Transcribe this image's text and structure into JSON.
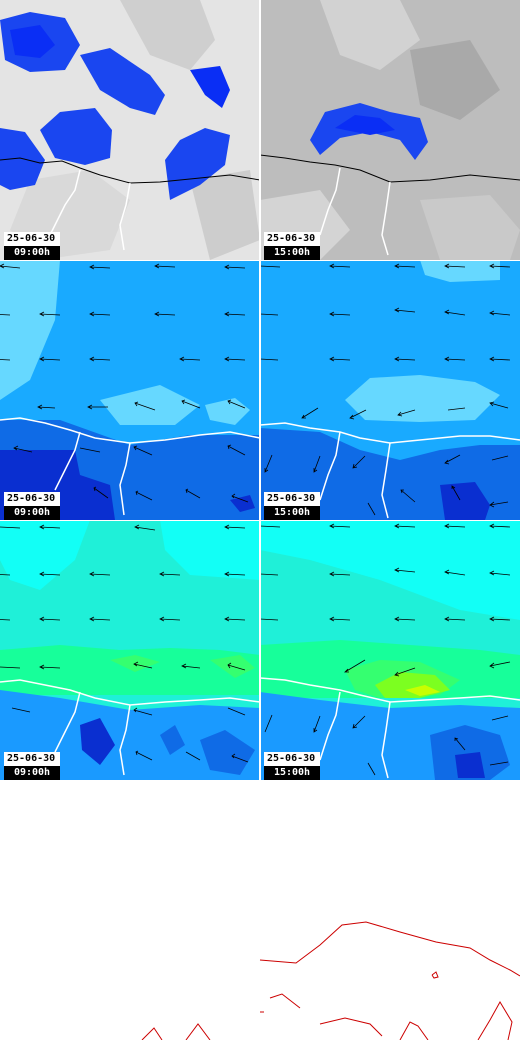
{
  "colors": {
    "cloud_light": "#e6e6e6",
    "cloud_dark": "#b9b9b9",
    "precip_core": "#0a2ef5",
    "precip_edge": "#1a46f0",
    "wind_bg": "#19aaff",
    "wind_light": "#66d8ff",
    "wind_dark": "#0f6be6",
    "wind_deep": "#0a2fd0",
    "temp_bg": "#1ff0d8",
    "temp_cyan": "#12fff6",
    "temp_green": "#17ff9a",
    "temp_yellow": "#c8ff00",
    "temp_blue": "#1a9aff",
    "coast_white": "#ffffff",
    "coast_black": "#000000",
    "outline_red": "#cc0000"
  },
  "rows": [
    {
      "layer": "cloud-precip",
      "panels": [
        {
          "date": "25-06-30",
          "time": "09:00h"
        },
        {
          "date": "25-06-30",
          "time": "15:00h"
        }
      ]
    },
    {
      "layer": "wind",
      "panels": [
        {
          "date": "25-06-30",
          "time": "09:00h"
        },
        {
          "date": "25-06-30",
          "time": "15:00h"
        }
      ]
    },
    {
      "layer": "temperature",
      "panels": [
        {
          "date": "25-06-30",
          "time": "09:00h"
        },
        {
          "date": "25-06-30",
          "time": "15:00h"
        }
      ]
    }
  ]
}
